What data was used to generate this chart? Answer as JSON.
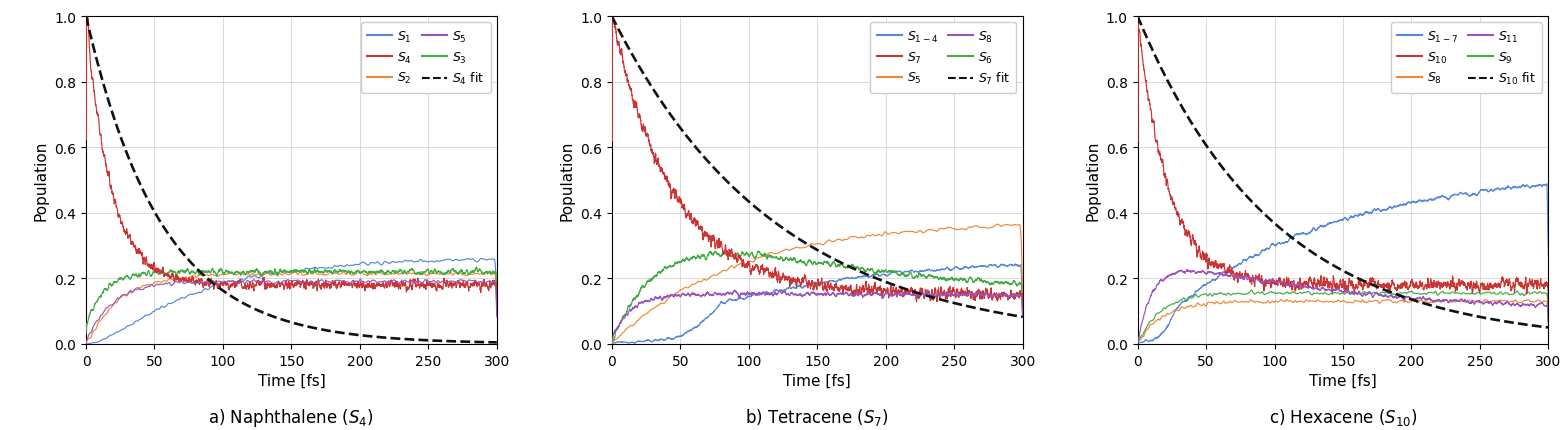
{
  "title_a": "a) Naphthalene ($S_4$)",
  "title_b": "b) Tetracene ($S_7$)",
  "title_c": "c) Hexacene ($S_{10}$)",
  "xlabel": "Time [fs]",
  "ylabel": "Population",
  "xlim": [
    0,
    300
  ],
  "ylim": [
    0,
    1.0
  ],
  "colors": {
    "blue": "#5588dd",
    "orange": "#ee8833",
    "green": "#44aa44",
    "red": "#cc3333",
    "purple": "#9955bb",
    "black": "#111111"
  },
  "fit_tau_a": 55.0,
  "fit_tau_b": 120.0,
  "fit_tau_c": 100.0,
  "seed": 12345
}
